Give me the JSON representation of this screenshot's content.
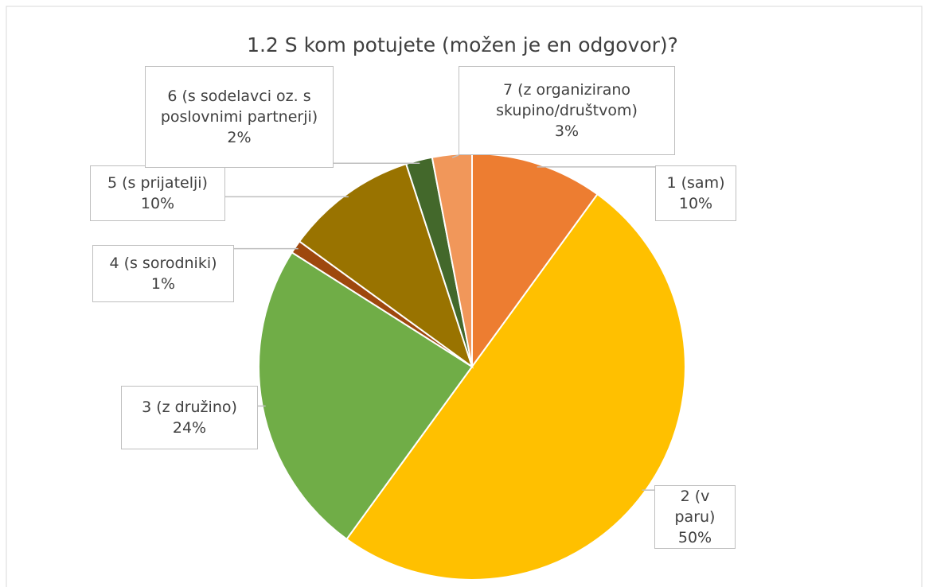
{
  "chart_data": {
    "type": "pie",
    "title": "1.2 S kom potujete (možen je en odgovor)?",
    "categories": [
      "1 (sam)",
      "2 (v paru)",
      "3 (z družino)",
      "4 (s sorodniki)",
      "5 (s prijatelji)",
      "6 (s sodelavci oz.  s poslovnimi partnerji)",
      "7 (z organizirano skupino/društvom)"
    ],
    "values": [
      10,
      50,
      24,
      1,
      10,
      2,
      3
    ],
    "value_labels": [
      "10%",
      "50%",
      "24%",
      "1%",
      "10%",
      "2%",
      "3%"
    ],
    "colors": [
      "#ED7D31",
      "#FFC000",
      "#70AD47",
      "#9E480E",
      "#997300",
      "#43682B",
      "#F1975A"
    ]
  }
}
